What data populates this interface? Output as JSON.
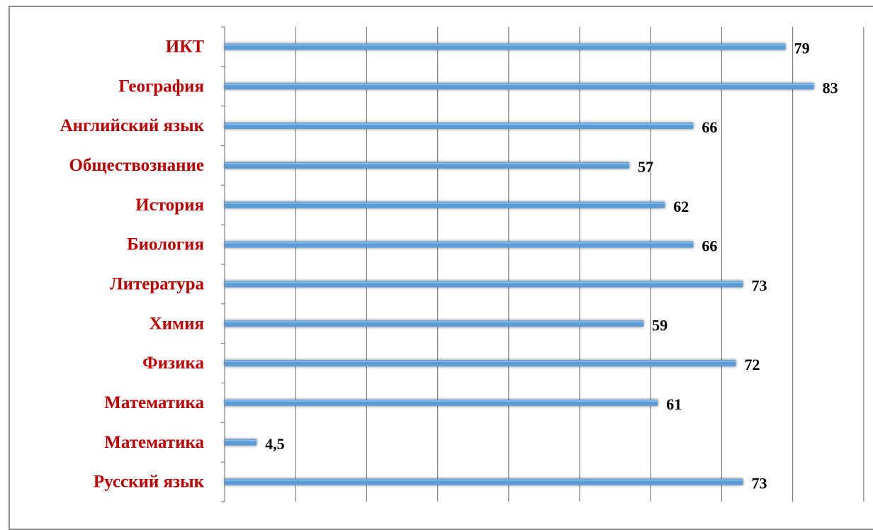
{
  "chart_data": {
    "type": "bar",
    "orientation": "horizontal",
    "title": "",
    "xlabel": "",
    "ylabel": "",
    "categories": [
      "ИКТ",
      "География",
      "Английский язык",
      "Обществознание",
      "История",
      "Биология",
      "Литература",
      "Химия",
      "Физика",
      "Математика",
      "Математика",
      "Русский язык"
    ],
    "values": [
      79,
      83,
      66,
      57,
      62,
      66,
      73,
      59,
      72,
      61,
      4.5,
      73
    ],
    "value_labels": [
      "79",
      "83",
      "66",
      "57",
      "62",
      "66",
      "73",
      "59",
      "72",
      "61",
      "4,5",
      "73"
    ],
    "xlim": [
      0,
      90
    ],
    "grid": "vertical",
    "legend": "none",
    "colors": {
      "bar": "#5b9bd5",
      "bar_highlight": "#8fc0ec",
      "category_text": "#c00000",
      "value_text": "#000000",
      "gridline": "#808080",
      "frame": "#8c8c8c"
    }
  }
}
